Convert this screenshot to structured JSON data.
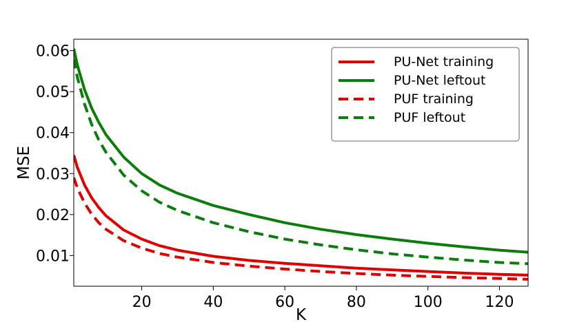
{
  "chart_data": {
    "type": "line",
    "xlabel": "K",
    "ylabel": "MSE",
    "xlim": [
      1,
      128
    ],
    "ylim": [
      0.0025,
      0.0628
    ],
    "xticks": [
      20,
      40,
      60,
      80,
      100,
      120
    ],
    "yticks": [
      0.01,
      0.02,
      0.03,
      0.04,
      0.05,
      0.06
    ],
    "xtick_labels": [
      "20",
      "40",
      "60",
      "80",
      "100",
      "120"
    ],
    "ytick_labels": [
      "0.01",
      "0.02",
      "0.03",
      "0.04",
      "0.05",
      "0.06"
    ],
    "grid": false,
    "legend_position": "top-right",
    "x": [
      1,
      2,
      4,
      6,
      8,
      10,
      15,
      20,
      25,
      30,
      40,
      50,
      60,
      70,
      80,
      90,
      100,
      110,
      120,
      128
    ],
    "series": [
      {
        "name": "PU-Net training",
        "color": "#e00000",
        "dash": "solid",
        "values": [
          0.0345,
          0.0315,
          0.0272,
          0.0241,
          0.0217,
          0.0197,
          0.0162,
          0.014,
          0.0124,
          0.0113,
          0.0098,
          0.0088,
          0.0081,
          0.0075,
          0.0069,
          0.0065,
          0.0061,
          0.0057,
          0.0054,
          0.0052
        ]
      },
      {
        "name": "PU-Net leftout",
        "color": "#0a7d0a",
        "dash": "solid",
        "values": [
          0.0605,
          0.0565,
          0.0505,
          0.046,
          0.0425,
          0.0395,
          0.034,
          0.03,
          0.0272,
          0.0252,
          0.0222,
          0.02,
          0.018,
          0.0164,
          0.0151,
          0.014,
          0.013,
          0.0121,
          0.0113,
          0.0108
        ]
      },
      {
        "name": "PUF training",
        "color": "#e00000",
        "dash": "dashed",
        "values": [
          0.029,
          0.0265,
          0.0228,
          0.0201,
          0.018,
          0.0164,
          0.0136,
          0.0118,
          0.0105,
          0.0096,
          0.0083,
          0.0074,
          0.0067,
          0.0061,
          0.0056,
          0.0052,
          0.0049,
          0.0046,
          0.0044,
          0.0042
        ]
      },
      {
        "name": "PUF leftout",
        "color": "#0a7d0a",
        "dash": "dashed",
        "values": [
          0.058,
          0.0535,
          0.047,
          0.042,
          0.0382,
          0.0352,
          0.0296,
          0.0258,
          0.023,
          0.021,
          0.018,
          0.0158,
          0.014,
          0.0126,
          0.0114,
          0.0104,
          0.0096,
          0.0089,
          0.0083,
          0.008
        ]
      }
    ]
  }
}
